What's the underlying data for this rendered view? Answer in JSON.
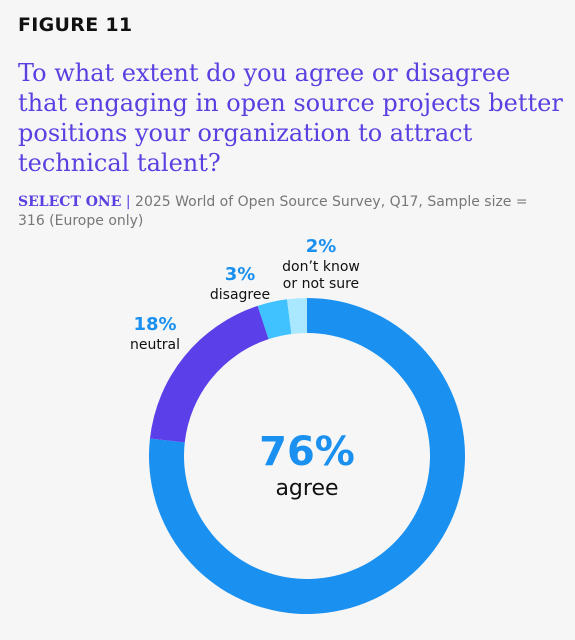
{
  "figure_label": "FIGURE 11",
  "chart_data": {
    "type": "pie",
    "title": "To what extent do you agree or disagree that engaging in open source projects better positions your organization to attract technical talent?",
    "subtitle_lead": "SELECT ONE",
    "subtitle_sep": "|",
    "subtitle_rest": "2025 World of Open Source Survey, Q17, Sample size = 316 (Europe only)",
    "slices": [
      {
        "label": "agree",
        "value": 76,
        "display": "76%",
        "color": "#1a90f0"
      },
      {
        "label": "neutral",
        "value": 18,
        "display": "18%",
        "color": "#5b3fe8"
      },
      {
        "label": "disagree",
        "value": 3,
        "display": "3%",
        "color": "#3fc2ff"
      },
      {
        "label_lines": [
          "don’t know",
          "or not sure"
        ],
        "value": 2,
        "display": "2%",
        "color": "#a9e8ff"
      }
    ],
    "center_value": "76%",
    "center_label": "agree"
  }
}
